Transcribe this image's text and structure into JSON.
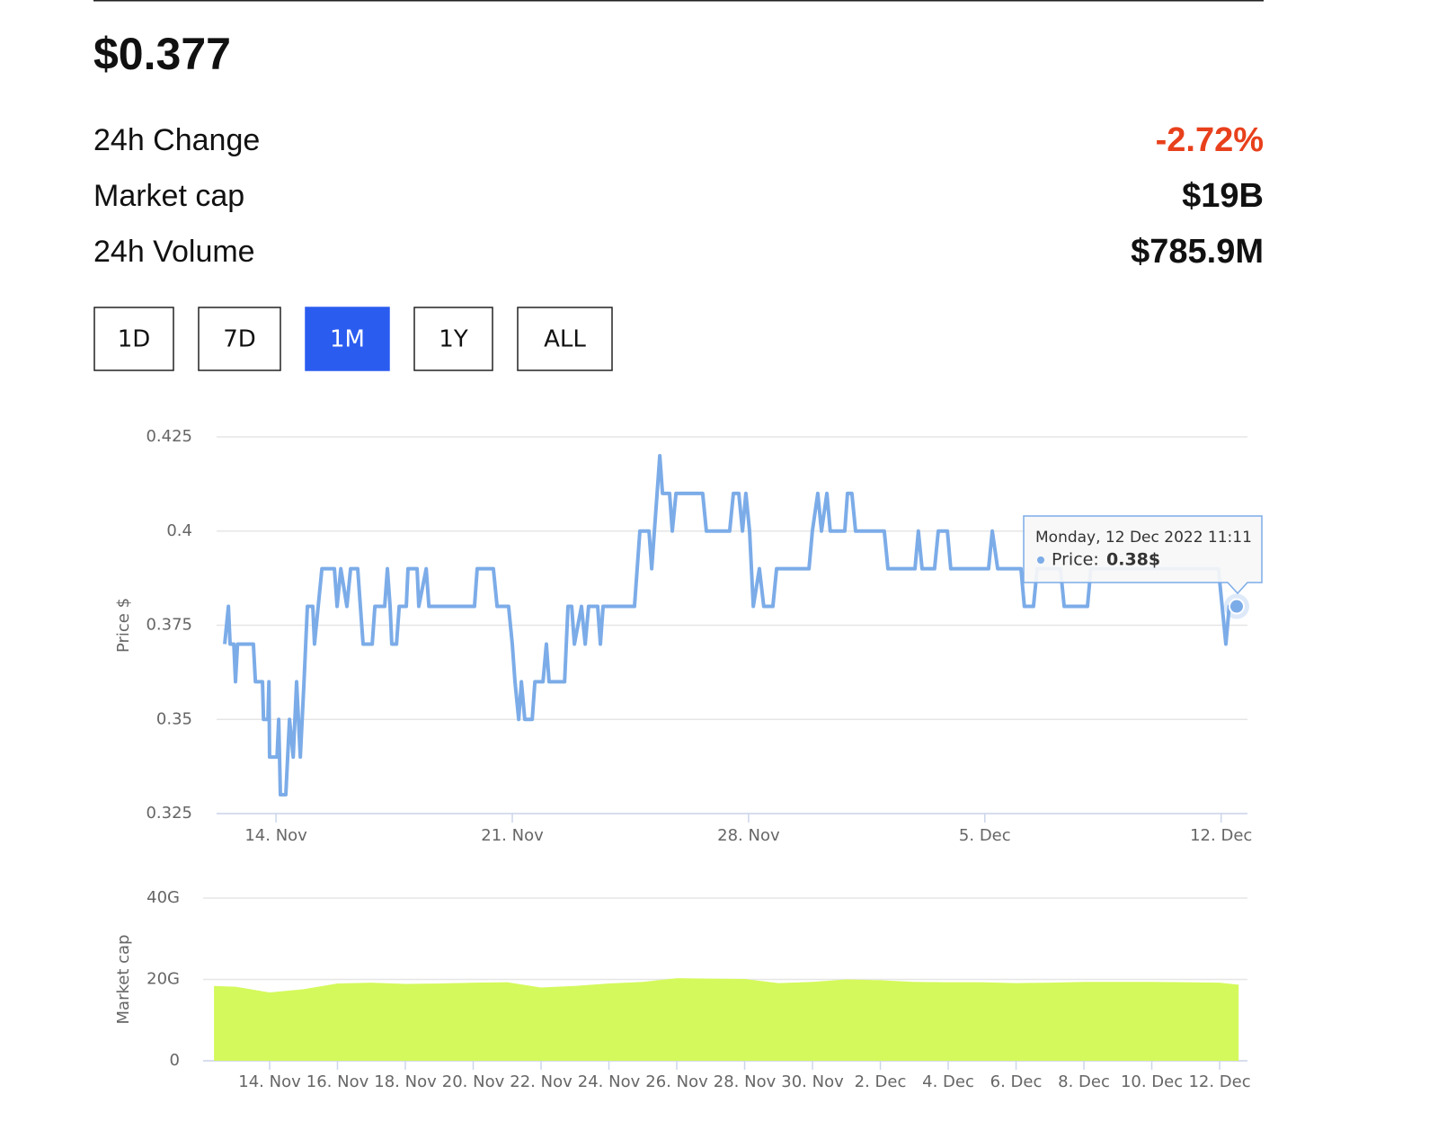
{
  "header": {
    "price": "$0.377",
    "stats": [
      {
        "label": "24h Change",
        "value": "-2.72%",
        "color": "#e8401c"
      },
      {
        "label": "Market cap",
        "value": "$19B",
        "color": "#111111"
      },
      {
        "label": "24h Volume",
        "value": "$785.9M",
        "color": "#111111"
      }
    ]
  },
  "range_buttons": {
    "options": [
      "1D",
      "7D",
      "1M",
      "1Y",
      "ALL"
    ],
    "active": 2
  },
  "chart_data": [
    {
      "type": "line",
      "y_label": "Price $",
      "color": "#7cace8",
      "grid": true,
      "xlim": [
        12.24,
        42.78
      ],
      "ylim": [
        0.325,
        0.425
      ],
      "yticks": [
        0.325,
        0.35,
        0.375,
        0.4,
        0.425
      ],
      "xticks": [
        {
          "value": 14,
          "label": "14. Nov"
        },
        {
          "value": 21,
          "label": "21. Nov"
        },
        {
          "value": 28,
          "label": "28. Nov"
        },
        {
          "value": 35,
          "label": "5. Dec"
        },
        {
          "value": 42,
          "label": "12. Dec"
        }
      ],
      "x": [
        12.48,
        12.59,
        12.64,
        12.75,
        12.8,
        12.86,
        13.33,
        13.39,
        13.6,
        13.63,
        13.76,
        13.79,
        13.81,
        14.03,
        14.08,
        14.13,
        14.29,
        14.4,
        14.51,
        14.61,
        14.72,
        14.83,
        14.88,
        14.93,
        15.09,
        15.14,
        15.25,
        15.36,
        15.73,
        15.81,
        15.92,
        16.1,
        16.21,
        16.42,
        16.58,
        16.85,
        16.93,
        17.22,
        17.3,
        17.38,
        17.43,
        17.57,
        17.65,
        17.86,
        17.91,
        18.18,
        18.23,
        18.45,
        18.53,
        19.88,
        19.96,
        20.44,
        20.55,
        20.89,
        21.0,
        21.08,
        21.19,
        21.27,
        21.37,
        21.59,
        21.67,
        21.91,
        22.01,
        22.09,
        22.55,
        22.65,
        22.76,
        22.84,
        23.05,
        23.16,
        23.26,
        23.53,
        23.61,
        23.69,
        24.62,
        24.7,
        24.78,
        25.05,
        25.13,
        25.21,
        25.37,
        25.45,
        25.66,
        25.74,
        25.85,
        26.64,
        26.75,
        27.44,
        27.55,
        27.71,
        27.82,
        27.92,
        28.03,
        28.14,
        28.32,
        28.45,
        28.72,
        28.83,
        29.79,
        29.89,
        30.05,
        30.16,
        30.32,
        30.42,
        30.85,
        30.93,
        31.06,
        31.17,
        32.02,
        32.13,
        32.93,
        33.03,
        33.14,
        33.51,
        33.62,
        33.89,
        33.99,
        35.11,
        35.22,
        35.38,
        36.07,
        36.17,
        36.44,
        36.55,
        37.24,
        37.35,
        38.04,
        38.14,
        41.92,
        42.03,
        42.14,
        42.24,
        42.46
      ],
      "values": [
        0.37,
        0.38,
        0.37,
        0.37,
        0.36,
        0.37,
        0.37,
        0.36,
        0.36,
        0.35,
        0.35,
        0.36,
        0.34,
        0.34,
        0.35,
        0.33,
        0.33,
        0.35,
        0.34,
        0.36,
        0.34,
        0.36,
        0.37,
        0.38,
        0.38,
        0.37,
        0.38,
        0.39,
        0.39,
        0.38,
        0.39,
        0.38,
        0.39,
        0.39,
        0.37,
        0.37,
        0.38,
        0.38,
        0.39,
        0.38,
        0.37,
        0.37,
        0.38,
        0.38,
        0.39,
        0.39,
        0.38,
        0.39,
        0.38,
        0.38,
        0.39,
        0.39,
        0.38,
        0.38,
        0.37,
        0.36,
        0.35,
        0.36,
        0.35,
        0.35,
        0.36,
        0.36,
        0.37,
        0.36,
        0.36,
        0.38,
        0.38,
        0.37,
        0.38,
        0.37,
        0.38,
        0.38,
        0.37,
        0.38,
        0.38,
        0.39,
        0.4,
        0.4,
        0.39,
        0.4,
        0.42,
        0.41,
        0.41,
        0.4,
        0.41,
        0.41,
        0.4,
        0.4,
        0.41,
        0.41,
        0.4,
        0.41,
        0.4,
        0.38,
        0.39,
        0.38,
        0.38,
        0.39,
        0.39,
        0.4,
        0.41,
        0.4,
        0.41,
        0.4,
        0.4,
        0.41,
        0.41,
        0.4,
        0.4,
        0.39,
        0.39,
        0.4,
        0.39,
        0.39,
        0.4,
        0.4,
        0.39,
        0.39,
        0.4,
        0.39,
        0.39,
        0.38,
        0.38,
        0.39,
        0.39,
        0.38,
        0.38,
        0.39,
        0.39,
        0.38,
        0.37,
        0.38,
        0.38
      ],
      "tooltip": {
        "date": "Monday, 12 Dec 2022 11:11",
        "label": "Price:",
        "value": "0.38$"
      }
    },
    {
      "type": "area",
      "y_label": "Market cap",
      "color": "#d4f95c",
      "grid": true,
      "xlim": [
        12.04,
        42.82
      ],
      "ylim": [
        0,
        40000000000
      ],
      "yticks": [
        {
          "value": 0,
          "label": "0"
        },
        {
          "value": 20000000000,
          "label": "20G"
        },
        {
          "value": 40000000000,
          "label": "40G"
        }
      ],
      "xticks": [
        {
          "value": 14,
          "label": "14. Nov"
        },
        {
          "value": 16,
          "label": "16. Nov"
        },
        {
          "value": 18,
          "label": "18. Nov"
        },
        {
          "value": 20,
          "label": "20. Nov"
        },
        {
          "value": 22,
          "label": "22. Nov"
        },
        {
          "value": 24,
          "label": "24. Nov"
        },
        {
          "value": 26,
          "label": "26. Nov"
        },
        {
          "value": 28,
          "label": "28. Nov"
        },
        {
          "value": 30,
          "label": "30. Nov"
        },
        {
          "value": 32,
          "label": "2. Dec"
        },
        {
          "value": 34,
          "label": "4. Dec"
        },
        {
          "value": 36,
          "label": "6. Dec"
        },
        {
          "value": 38,
          "label": "8. Dec"
        },
        {
          "value": 40,
          "label": "10. Dec"
        },
        {
          "value": 42,
          "label": "12. Dec"
        }
      ],
      "x": [
        12.36,
        13,
        14,
        15,
        16,
        17,
        18,
        19,
        20,
        21,
        22,
        23,
        24,
        25,
        26,
        27,
        28,
        29,
        30,
        31,
        32,
        33,
        34,
        35,
        36,
        37,
        38,
        39,
        40,
        41,
        42,
        42.56
      ],
      "values": [
        18400000000,
        18200000000,
        16800000000,
        17600000000,
        19000000000,
        19200000000,
        18900000000,
        19000000000,
        19200000000,
        19300000000,
        18000000000,
        18400000000,
        19000000000,
        19400000000,
        20300000000,
        20200000000,
        20100000000,
        19100000000,
        19400000000,
        20000000000,
        19800000000,
        19400000000,
        19300000000,
        19300000000,
        19100000000,
        19200000000,
        19400000000,
        19400000000,
        19400000000,
        19300000000,
        19200000000,
        18700000000
      ]
    }
  ]
}
